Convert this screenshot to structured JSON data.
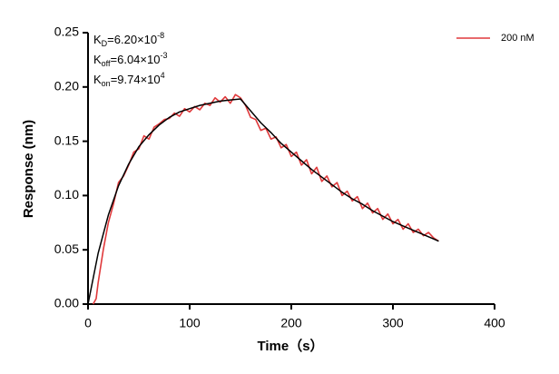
{
  "chart_data": {
    "type": "line",
    "x_label": "Time（s）",
    "y_label": "Response (nm)",
    "xlim": [
      0,
      400
    ],
    "xticks": [
      0,
      100,
      200,
      300,
      400
    ],
    "ylim": [
      0,
      0.25
    ],
    "yticks": [
      {
        "value": 0,
        "label": "0.00"
      },
      {
        "value": 0.05,
        "label": "0.05"
      },
      {
        "value": 0.1,
        "label": "0.10"
      },
      {
        "value": 0.15,
        "label": "0.15"
      },
      {
        "value": 0.2,
        "label": "0.20"
      },
      {
        "value": 0.25,
        "label": "0.25"
      }
    ],
    "legend": "top-right",
    "annotations": [
      {
        "symbol": "K",
        "sub": "D",
        "text": "=6.20×10",
        "sup": "-8"
      },
      {
        "symbol": "K",
        "sub": "off",
        "text": "=6.04×10",
        "sup": "-3"
      },
      {
        "symbol": "K",
        "sub": "on",
        "text": "=9.74×10",
        "sup": "4"
      }
    ],
    "series": [
      {
        "name": "200 nM",
        "color": "#e0393b",
        "x": [
          5,
          8,
          10,
          15,
          20,
          25,
          30,
          35,
          40,
          45,
          50,
          55,
          60,
          65,
          70,
          75,
          80,
          85,
          90,
          95,
          100,
          105,
          110,
          115,
          120,
          125,
          130,
          135,
          140,
          145,
          150,
          155,
          160,
          165,
          170,
          175,
          180,
          185,
          190,
          195,
          200,
          205,
          210,
          215,
          220,
          225,
          230,
          235,
          240,
          245,
          250,
          255,
          260,
          265,
          270,
          275,
          280,
          285,
          290,
          295,
          300,
          305,
          310,
          315,
          320,
          325,
          330,
          335,
          340,
          345
        ],
        "values": [
          0.0,
          0.005,
          0.02,
          0.05,
          0.075,
          0.092,
          0.112,
          0.118,
          0.128,
          0.14,
          0.143,
          0.155,
          0.152,
          0.163,
          0.166,
          0.17,
          0.171,
          0.176,
          0.173,
          0.18,
          0.177,
          0.182,
          0.179,
          0.185,
          0.183,
          0.19,
          0.186,
          0.191,
          0.185,
          0.193,
          0.19,
          0.183,
          0.172,
          0.17,
          0.16,
          0.162,
          0.152,
          0.154,
          0.144,
          0.147,
          0.136,
          0.14,
          0.128,
          0.133,
          0.12,
          0.126,
          0.113,
          0.118,
          0.108,
          0.112,
          0.1,
          0.104,
          0.095,
          0.099,
          0.088,
          0.093,
          0.084,
          0.088,
          0.078,
          0.083,
          0.074,
          0.078,
          0.069,
          0.074,
          0.066,
          0.069,
          0.063,
          0.066,
          0.061,
          0.058
        ]
      },
      {
        "color": "#000000",
        "x": [
          0,
          10,
          20,
          30,
          40,
          50,
          60,
          70,
          80,
          90,
          100,
          110,
          120,
          130,
          140,
          150,
          160,
          170,
          180,
          190,
          200,
          210,
          220,
          230,
          240,
          250,
          260,
          270,
          280,
          290,
          300,
          310,
          320,
          330,
          340,
          345
        ],
        "values": [
          0,
          0.047,
          0.082,
          0.109,
          0.129,
          0.145,
          0.156,
          0.165,
          0.172,
          0.177,
          0.18,
          0.183,
          0.185,
          0.187,
          0.188,
          0.189,
          0.178,
          0.167,
          0.158,
          0.148,
          0.14,
          0.132,
          0.124,
          0.117,
          0.11,
          0.103,
          0.097,
          0.092,
          0.086,
          0.081,
          0.076,
          0.072,
          0.068,
          0.064,
          0.06,
          0.058
        ]
      }
    ]
  }
}
